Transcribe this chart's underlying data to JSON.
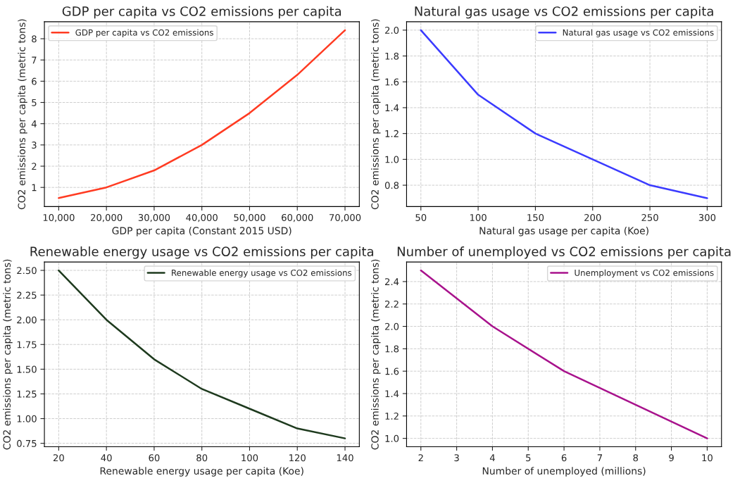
{
  "chart_data": [
    {
      "type": "line",
      "title": "GDP per capita vs CO2 emissions per capita",
      "xlabel": "GDP per capita (Constant 2015 USD)",
      "ylabel": "CO2 emissions per capita (metric tons)",
      "x": [
        10000,
        20000,
        30000,
        40000,
        50000,
        60000,
        70000
      ],
      "series": [
        {
          "name": "GDP per capita vs CO2 emissions",
          "color": "#ff3b22",
          "values": [
            0.5,
            1.0,
            1.8,
            3.0,
            4.5,
            6.3,
            8.4
          ]
        }
      ],
      "xlim": [
        7000,
        73000
      ],
      "xticks": [
        {
          "value": 10000,
          "label": "10,000"
        },
        {
          "value": 20000,
          "label": "20,000"
        },
        {
          "value": 30000,
          "label": "30,000"
        },
        {
          "value": 40000,
          "label": "40,000"
        },
        {
          "value": 50000,
          "label": "50,000"
        },
        {
          "value": 60000,
          "label": "60,000"
        },
        {
          "value": 70000,
          "label": "70,000"
        }
      ],
      "ylim": [
        0.1,
        8.8
      ],
      "yticks": [
        1,
        2,
        3,
        4,
        5,
        6,
        7,
        8
      ],
      "grid": true,
      "legend": "top left"
    },
    {
      "type": "line",
      "title": "Natural gas usage vs CO2 emissions per capita",
      "xlabel": "Natural gas usage per capita (Koe)",
      "ylabel": "CO2 emissions per capita (metric tons)",
      "x": [
        50,
        100,
        150,
        200,
        250,
        300
      ],
      "series": [
        {
          "name": "Natural gas usage vs CO2 emissions",
          "color": "#3b3bff",
          "values": [
            2.0,
            1.5,
            1.2,
            1.0,
            0.8,
            0.7
          ]
        }
      ],
      "xlim": [
        37.5,
        312.5
      ],
      "xticks": [
        50,
        100,
        150,
        200,
        250,
        300
      ],
      "ylim": [
        0.635,
        2.065
      ],
      "yticks": [
        {
          "value": 0.8,
          "label": "0.8"
        },
        {
          "value": 1.0,
          "label": "1.0"
        },
        {
          "value": 1.2,
          "label": "1.2"
        },
        {
          "value": 1.4,
          "label": "1.4"
        },
        {
          "value": 1.6,
          "label": "1.6"
        },
        {
          "value": 1.8,
          "label": "1.8"
        },
        {
          "value": 2.0,
          "label": "2.0"
        }
      ],
      "grid": true,
      "legend": "top right"
    },
    {
      "type": "line",
      "title": "Renewable energy usage vs CO2 emissions per capita",
      "xlabel": "Renewable energy usage per capita (Koe)",
      "ylabel": "CO2 emissions per capita (metric tons)",
      "x": [
        20,
        40,
        60,
        80,
        100,
        120,
        140
      ],
      "series": [
        {
          "name": "Renewable energy usage vs CO2 emissions",
          "color": "#1e3a1e",
          "values": [
            2.5,
            2.0,
            1.6,
            1.3,
            1.1,
            0.9,
            0.8
          ]
        }
      ],
      "xlim": [
        14,
        146
      ],
      "xticks": [
        20,
        40,
        60,
        80,
        100,
        120,
        140
      ],
      "ylim": [
        0.715,
        2.585
      ],
      "yticks": [
        {
          "value": 0.75,
          "label": "0.75"
        },
        {
          "value": 1.0,
          "label": "1.00"
        },
        {
          "value": 1.25,
          "label": "1.25"
        },
        {
          "value": 1.5,
          "label": "1.50"
        },
        {
          "value": 1.75,
          "label": "1.75"
        },
        {
          "value": 2.0,
          "label": "2.00"
        },
        {
          "value": 2.25,
          "label": "2.25"
        },
        {
          "value": 2.5,
          "label": "2.50"
        }
      ],
      "grid": true,
      "legend": "top right"
    },
    {
      "type": "line",
      "title": "Number of unemployed vs CO2 emissions per capita",
      "xlabel": "Number of unemployed (millions)",
      "ylabel": "CO2 emissions per capita (metric tons)",
      "x": [
        2,
        4,
        6,
        8,
        10
      ],
      "series": [
        {
          "name": "Unemployment vs CO2 emissions",
          "color": "#a8128c",
          "values": [
            2.5,
            2.0,
            1.6,
            1.3,
            1.0
          ]
        }
      ],
      "xlim": [
        1.6,
        10.4
      ],
      "xticks": [
        2,
        3,
        4,
        5,
        6,
        7,
        8,
        9,
        10
      ],
      "ylim": [
        0.925,
        2.575
      ],
      "yticks": [
        {
          "value": 1.0,
          "label": "1.0"
        },
        {
          "value": 1.2,
          "label": "1.2"
        },
        {
          "value": 1.4,
          "label": "1.4"
        },
        {
          "value": 1.6,
          "label": "1.6"
        },
        {
          "value": 1.8,
          "label": "1.8"
        },
        {
          "value": 2.0,
          "label": "2.0"
        },
        {
          "value": 2.2,
          "label": "2.2"
        },
        {
          "value": 2.4,
          "label": "2.4"
        }
      ],
      "grid": true,
      "legend": "top right"
    }
  ]
}
